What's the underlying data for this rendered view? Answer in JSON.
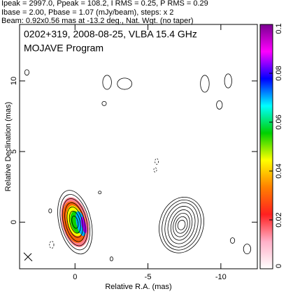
{
  "chart_data": {
    "type": "contour",
    "header": [
      "Ipeak = 2997.0, Ppeak = 108.2, I RMS = 0.25, P RMS = 0.29",
      "Ibase = 2.00, Pbase = 1.07 (mJy/beam), steps: x 2",
      "Beam: 0.92x0.56 mas at -13.2 deg., Nat. Wgt. (no taper)"
    ],
    "title": "0202+319, 2008-08-25, VLBA 15.4 GHz",
    "subtitle": "MOJAVE Program",
    "xlabel": "Relative R.A. (mas)",
    "ylabel": "Relative Declination (mas)",
    "xlim": [
      3.8,
      -12.5
    ],
    "ylim": [
      -3.3,
      14.0
    ],
    "xticks": [
      0,
      -5,
      -10
    ],
    "yticks": [
      0,
      5,
      10
    ],
    "contours": [
      {
        "x": 0,
        "y": 0,
        "angle": -13,
        "rx": [
          1.1,
          0.95,
          0.8,
          0.65,
          0.5,
          0.35,
          0.2
        ],
        "ry": [
          2.3,
          2.0,
          1.7,
          1.4,
          1.1,
          0.8,
          0.45
        ]
      },
      {
        "x": -7.3,
        "y": -0.2,
        "angle": 15,
        "rx": [
          1.5,
          1.3,
          1.1,
          0.9,
          0.7,
          0.55,
          0.4,
          0.25
        ],
        "ry": [
          2.0,
          1.8,
          1.6,
          1.35,
          1.1,
          0.85,
          0.6,
          0.35
        ]
      },
      {
        "x": -2.2,
        "y": 9.9,
        "angle": 0,
        "rx": [
          0.3
        ],
        "ry": [
          0.5
        ]
      },
      {
        "x": -3.4,
        "y": 9.8,
        "angle": 0,
        "rx": [
          0.5
        ],
        "ry": [
          0.4
        ]
      },
      {
        "x": -2.0,
        "y": 8.4,
        "angle": 0,
        "rx": [
          0.15
        ],
        "ry": [
          0.15
        ]
      },
      {
        "x": -8.9,
        "y": 9.8,
        "angle": 0,
        "rx": [
          0.3
        ],
        "ry": [
          0.6
        ]
      },
      {
        "x": -10.5,
        "y": 10.0,
        "angle": 0,
        "rx": [
          0.25
        ],
        "ry": [
          0.5
        ]
      },
      {
        "x": -9.9,
        "y": 8.3,
        "angle": 0,
        "rx": [
          0.2
        ],
        "ry": [
          0.3
        ]
      },
      {
        "x": 3.3,
        "y": 10.6,
        "angle": 0,
        "rx": [
          0.15
        ],
        "ry": [
          0.2
        ]
      },
      {
        "x": -5.6,
        "y": 4.3,
        "angle": 0,
        "rx": [
          0.12
        ],
        "ry": [
          0.2
        ],
        "dashed": true
      },
      {
        "x": -5.5,
        "y": 3.7,
        "angle": 0,
        "rx": [
          0.1
        ],
        "ry": [
          0.15
        ],
        "dashed": true
      },
      {
        "x": -11.8,
        "y": -1.9,
        "angle": 0,
        "rx": [
          0.25
        ],
        "ry": [
          0.35
        ]
      },
      {
        "x": -10.8,
        "y": -1.3,
        "angle": 0,
        "rx": [
          0.15
        ],
        "ry": [
          0.2
        ]
      },
      {
        "x": 1.6,
        "y": -1.6,
        "angle": 0,
        "rx": [
          0.15
        ],
        "ry": [
          0.25
        ],
        "dashed": true
      },
      {
        "x": -2.5,
        "y": -2.6,
        "angle": 0,
        "rx": [
          0.1
        ],
        "ry": [
          0.15
        ]
      },
      {
        "x": 1.7,
        "y": 0.8,
        "angle": 0,
        "rx": [
          0.1
        ],
        "ry": [
          0.15
        ]
      },
      {
        "x": -1.7,
        "y": 2.1,
        "angle": 0,
        "rx": [
          0.1
        ],
        "ry": [
          0.1
        ]
      }
    ],
    "polarization": [
      {
        "x": 0,
        "y": 0,
        "rx": 0.9,
        "ry": 1.8,
        "value": 0.015
      },
      {
        "x": 0.05,
        "y": 0,
        "rx": 0.75,
        "ry": 1.5,
        "value": 0.03
      },
      {
        "x": 0,
        "y": 0.1,
        "rx": 0.55,
        "ry": 1.1,
        "value": 0.045
      },
      {
        "x": -0.1,
        "y": 0,
        "rx": 0.4,
        "ry": 0.8,
        "value": 0.055
      },
      {
        "x": -0.4,
        "y": -0.1,
        "rx": 0.3,
        "ry": 0.9,
        "value": 0.07
      },
      {
        "x": -0.6,
        "y": -0.2,
        "rx": 0.15,
        "ry": 0.6,
        "value": 0.085
      }
    ],
    "colorbar": {
      "ylim": [
        0,
        0.1
      ],
      "yticks": [
        0,
        0.02,
        0.04,
        0.06,
        0.08,
        0.1
      ],
      "colors": [
        "#ffffff",
        "#ffb0c8",
        "#ff2020",
        "#ff8000",
        "#ffff00",
        "#00d000",
        "#00ffff",
        "#0000ff",
        "#ff00ff",
        "#7a0090"
      ]
    }
  }
}
